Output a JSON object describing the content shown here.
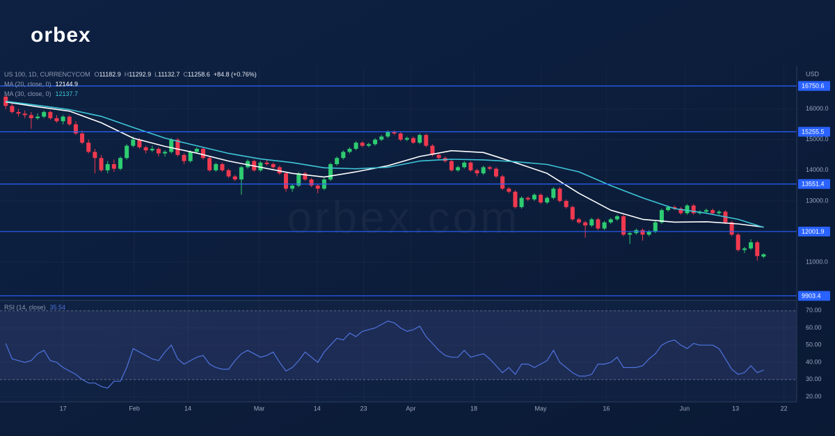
{
  "logo": "orbex",
  "watermark": "orbex.com",
  "chart_data": [
    {
      "type": "candlestick",
      "symbol": "US 100, 1D, CURRENCYCOM",
      "ohlc_prefixes": [
        "O",
        "H",
        "L",
        "C"
      ],
      "change": "+84.8 (+0.76%)",
      "currency": "USD",
      "up_color": "#2ecc71",
      "down_color": "#f0394f",
      "level_color": "#2962ff",
      "xlim": [
        -0.9,
        124.2
      ],
      "ylim": [
        9800,
        17400
      ],
      "xticks": [
        {
          "value": 9,
          "label": "17"
        },
        {
          "value": 20.2,
          "label": "Feb"
        },
        {
          "value": 28.6,
          "label": "14"
        },
        {
          "value": 39.8,
          "label": "Mar"
        },
        {
          "value": 48.9,
          "label": "14"
        },
        {
          "value": 56.2,
          "label": "23"
        },
        {
          "value": 63.6,
          "label": "Apr"
        },
        {
          "value": 73.5,
          "label": "18"
        },
        {
          "value": 84,
          "label": "May"
        },
        {
          "value": 94.3,
          "label": "16"
        },
        {
          "value": 106.6,
          "label": "Jun"
        },
        {
          "value": 114.6,
          "label": "13"
        },
        {
          "value": 122.2,
          "label": "22"
        }
      ],
      "yticks": [
        {
          "value": 16000,
          "label": "16000.0"
        },
        {
          "value": 15000,
          "label": "15000.0"
        },
        {
          "value": 14000,
          "label": "14000.0"
        },
        {
          "value": 13000,
          "label": "13000.0"
        },
        {
          "value": 12000,
          "label": "12000.0"
        },
        {
          "value": 11000,
          "label": "11000.0"
        }
      ],
      "levels": [
        16750.6,
        15255.5,
        13551.4,
        12001.9,
        9903.4
      ],
      "candles": [
        [
          16400,
          16450,
          16000,
          16100
        ],
        [
          16100,
          16200,
          15850,
          15900
        ],
        [
          15900,
          16000,
          15750,
          15850
        ],
        [
          15850,
          15950,
          15700,
          15800
        ],
        [
          15800,
          15900,
          15350,
          15700
        ],
        [
          15700,
          15850,
          15650,
          15750
        ],
        [
          15750,
          15950,
          15700,
          15900
        ],
        [
          15900,
          15950,
          15650,
          15700
        ],
        [
          15700,
          15800,
          15550,
          15600
        ],
        [
          15600,
          15800,
          15500,
          15750
        ],
        [
          15750,
          15800,
          15450,
          15500
        ],
        [
          15500,
          15600,
          15150,
          15200
        ],
        [
          15200,
          15300,
          14850,
          14900
        ],
        [
          14900,
          15000,
          14550,
          14600
        ],
        [
          14600,
          14700,
          13900,
          14400
        ],
        [
          14400,
          14500,
          13950,
          14000
        ],
        [
          14000,
          14300,
          13900,
          14200
        ],
        [
          14200,
          14350,
          13950,
          14050
        ],
        [
          14050,
          14450,
          14000,
          14400
        ],
        [
          14400,
          14850,
          14350,
          14800
        ],
        [
          14800,
          15100,
          14750,
          15000
        ],
        [
          15000,
          15050,
          14700,
          14750
        ],
        [
          14750,
          14800,
          14550,
          14650
        ],
        [
          14650,
          14800,
          14600,
          14700
        ],
        [
          14700,
          14750,
          14450,
          14550
        ],
        [
          14550,
          14650,
          14450,
          14600
        ],
        [
          14600,
          15050,
          14550,
          15000
        ],
        [
          15000,
          15050,
          14450,
          14500
        ],
        [
          14500,
          14550,
          14200,
          14300
        ],
        [
          14300,
          14650,
          14250,
          14600
        ],
        [
          14600,
          14750,
          14550,
          14700
        ],
        [
          14700,
          14750,
          14350,
          14400
        ],
        [
          14400,
          14450,
          13950,
          14000
        ],
        [
          14000,
          14250,
          13950,
          14200
        ],
        [
          14200,
          14250,
          13950,
          14000
        ],
        [
          14000,
          14050,
          13750,
          13800
        ],
        [
          13800,
          13850,
          13650,
          13700
        ],
        [
          13700,
          14150,
          13200,
          14100
        ],
        [
          14100,
          14350,
          14050,
          14300
        ],
        [
          14300,
          14350,
          13950,
          14000
        ],
        [
          14000,
          14300,
          13950,
          14250
        ],
        [
          14250,
          14350,
          14150,
          14200
        ],
        [
          14200,
          14250,
          14050,
          14100
        ],
        [
          14100,
          14150,
          13850,
          13900
        ],
        [
          13900,
          13950,
          13300,
          13400
        ],
        [
          13400,
          13550,
          13300,
          13500
        ],
        [
          13500,
          13950,
          13450,
          13900
        ],
        [
          13900,
          13950,
          13650,
          13700
        ],
        [
          13700,
          13750,
          13450,
          13500
        ],
        [
          13500,
          13550,
          13250,
          13400
        ],
        [
          13400,
          13750,
          13350,
          13700
        ],
        [
          13700,
          14250,
          13650,
          14200
        ],
        [
          14200,
          14450,
          14150,
          14400
        ],
        [
          14400,
          14650,
          14350,
          14600
        ],
        [
          14600,
          14750,
          14550,
          14700
        ],
        [
          14700,
          14950,
          14650,
          14900
        ],
        [
          14900,
          14950,
          14750,
          14800
        ],
        [
          14800,
          14900,
          14750,
          14850
        ],
        [
          14850,
          15050,
          14800,
          15000
        ],
        [
          15000,
          15150,
          14950,
          15100
        ],
        [
          15100,
          15300,
          15050,
          15250
        ],
        [
          15250,
          15300,
          15150,
          15200
        ],
        [
          15200,
          15250,
          14950,
          15000
        ],
        [
          15000,
          15100,
          14950,
          15050
        ],
        [
          15050,
          15100,
          14850,
          14900
        ],
        [
          14900,
          15200,
          14850,
          15150
        ],
        [
          15150,
          15200,
          14750,
          14800
        ],
        [
          14800,
          14850,
          14450,
          14500
        ],
        [
          14500,
          14550,
          14350,
          14400
        ],
        [
          14400,
          14450,
          14250,
          14300
        ],
        [
          14300,
          14350,
          13950,
          14000
        ],
        [
          14000,
          14150,
          13950,
          14100
        ],
        [
          14100,
          14300,
          14050,
          14250
        ],
        [
          14250,
          14300,
          13950,
          14000
        ],
        [
          14000,
          14050,
          13800,
          13900
        ],
        [
          13900,
          14150,
          13850,
          14100
        ],
        [
          14100,
          14150,
          14000,
          14050
        ],
        [
          14050,
          14100,
          13750,
          13800
        ],
        [
          13800,
          13850,
          13350,
          13400
        ],
        [
          13400,
          13450,
          13250,
          13300
        ],
        [
          13300,
          13350,
          12750,
          12800
        ],
        [
          12800,
          13150,
          12750,
          13100
        ],
        [
          13100,
          13150,
          13000,
          13050
        ],
        [
          13050,
          13250,
          13000,
          13200
        ],
        [
          13200,
          13250,
          12900,
          12950
        ],
        [
          12950,
          13150,
          12900,
          13100
        ],
        [
          13100,
          13450,
          13050,
          13400
        ],
        [
          13400,
          13450,
          12950,
          13000
        ],
        [
          13000,
          13050,
          12750,
          12800
        ],
        [
          12800,
          12850,
          12350,
          12400
        ],
        [
          12400,
          12450,
          12250,
          12300
        ],
        [
          12300,
          12350,
          11800,
          12200
        ],
        [
          12200,
          12450,
          12150,
          12400
        ],
        [
          12400,
          12450,
          12050,
          12100
        ],
        [
          12100,
          12350,
          12050,
          12300
        ],
        [
          12300,
          12450,
          12250,
          12400
        ],
        [
          12400,
          12550,
          12350,
          12500
        ],
        [
          12500,
          12550,
          11850,
          11900
        ],
        [
          11900,
          12000,
          11600,
          11950
        ],
        [
          11950,
          12100,
          11900,
          12050
        ],
        [
          12050,
          12100,
          11700,
          11900
        ],
        [
          11900,
          12050,
          11850,
          12000
        ],
        [
          12000,
          12350,
          11950,
          12300
        ],
        [
          12300,
          12750,
          12250,
          12700
        ],
        [
          12700,
          12850,
          12650,
          12800
        ],
        [
          12800,
          12850,
          12700,
          12750
        ],
        [
          12750,
          12800,
          12550,
          12600
        ],
        [
          12600,
          12900,
          12550,
          12850
        ],
        [
          12850,
          12900,
          12550,
          12600
        ],
        [
          12600,
          12700,
          12550,
          12650
        ],
        [
          12650,
          12750,
          12600,
          12700
        ],
        [
          12700,
          12750,
          12550,
          12600
        ],
        [
          12600,
          12700,
          12550,
          12650
        ],
        [
          12650,
          12700,
          12250,
          12300
        ],
        [
          12300,
          12350,
          11850,
          11900
        ],
        [
          11900,
          11950,
          11350,
          11400
        ],
        [
          11400,
          11500,
          11300,
          11450
        ],
        [
          11450,
          11750,
          11400,
          11650
        ],
        [
          11650,
          11700,
          11050,
          11200
        ],
        [
          11182.9,
          11292.9,
          11132.7,
          11258.6
        ]
      ],
      "series": [
        {
          "name": "MA (20, close, 0)",
          "color": "#ffffff",
          "x": [
            0,
            5,
            10,
            15,
            20,
            25,
            30,
            35,
            40,
            45,
            50,
            55,
            60,
            65,
            70,
            75,
            80,
            85,
            90,
            95,
            100,
            105,
            110,
            115,
            119
          ],
          "values": [
            16230,
            16070,
            15930,
            15550,
            15050,
            14780,
            14560,
            14300,
            14100,
            13900,
            13780,
            13950,
            14150,
            14450,
            14640,
            14580,
            14250,
            13900,
            13250,
            12700,
            12400,
            12310,
            12320,
            12250,
            12144.9
          ]
        },
        {
          "name": "MA (30, close, 0)",
          "color": "#3ec6d8",
          "x": [
            0,
            5,
            10,
            15,
            20,
            25,
            30,
            35,
            40,
            45,
            50,
            55,
            60,
            65,
            70,
            75,
            80,
            85,
            90,
            95,
            100,
            105,
            110,
            115,
            119
          ],
          "values": [
            16250,
            16120,
            15980,
            15760,
            15400,
            15050,
            14800,
            14550,
            14370,
            14250,
            14080,
            14050,
            14100,
            14300,
            14360,
            14340,
            14280,
            14190,
            13950,
            13500,
            13100,
            12750,
            12600,
            12400,
            12137.7
          ]
        }
      ]
    },
    {
      "type": "line",
      "name": "RSI (14, close)",
      "color": "#4f74e0",
      "band": [
        30,
        70
      ],
      "band_color": "#7a7fd0",
      "ylim": [
        17,
        76
      ],
      "yticks": [
        {
          "value": 70,
          "label": "70.00"
        },
        {
          "value": 60,
          "label": "60.00"
        },
        {
          "value": 50,
          "label": "50.00"
        },
        {
          "value": 40,
          "label": "40.00"
        },
        {
          "value": 30,
          "label": "30.00"
        },
        {
          "value": 20,
          "label": "20.00"
        }
      ],
      "values": [
        51,
        42,
        41,
        40,
        41,
        45,
        47,
        41,
        40,
        37,
        35,
        33,
        30,
        28,
        28,
        26,
        25,
        29,
        29,
        37,
        48,
        46,
        44,
        42,
        41,
        46,
        50,
        42,
        39,
        41,
        43,
        44,
        39,
        37,
        36,
        36,
        41,
        45,
        47,
        45,
        43,
        44,
        46,
        40,
        35,
        37,
        41,
        46,
        43,
        40,
        46,
        50,
        54,
        53,
        57,
        55,
        58,
        59,
        60,
        62,
        64,
        63,
        60,
        58,
        59,
        61,
        55,
        51,
        47,
        44,
        43,
        43,
        47,
        43,
        44,
        45,
        42,
        38,
        34,
        37,
        33,
        39,
        39,
        37,
        39,
        41,
        47,
        40,
        37,
        34,
        32,
        32,
        33,
        39,
        39,
        40,
        43,
        37,
        37,
        37,
        38,
        42,
        45,
        50,
        52,
        53,
        50,
        48,
        51,
        50,
        50,
        50,
        48,
        42,
        36,
        33,
        34,
        38,
        34,
        35.54
      ]
    }
  ]
}
